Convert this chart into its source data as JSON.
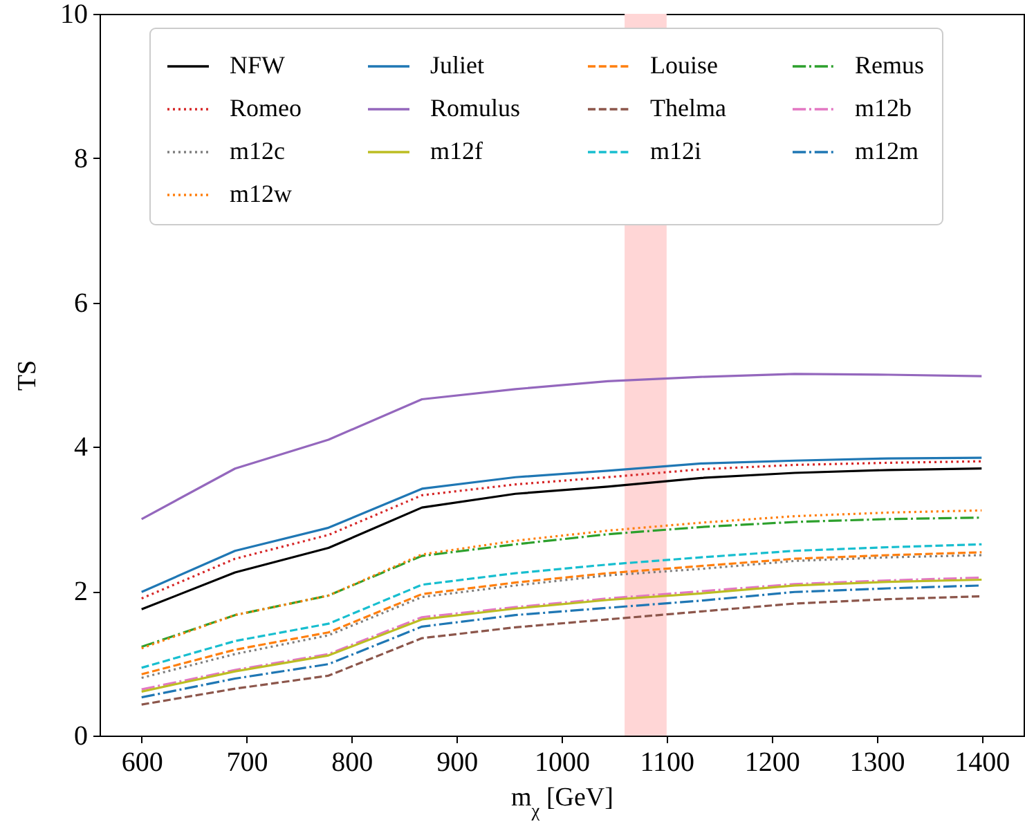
{
  "chart_data": {
    "type": "line",
    "xlabel": "m$_{χ}$ [GeV]",
    "ylabel": "TS",
    "x": [
      600,
      689,
      778,
      867,
      956,
      1044,
      1133,
      1222,
      1311,
      1400
    ],
    "xlim": [
      560,
      1440
    ],
    "ylim": [
      0,
      10
    ],
    "xticks": [
      600,
      700,
      800,
      900,
      1000,
      1100,
      1200,
      1300,
      1400
    ],
    "yticks": [
      0,
      2,
      4,
      6,
      8,
      10
    ],
    "grid": false,
    "legend": "top",
    "marker": "none",
    "bands": [
      {
        "axis": "x",
        "from": 1060,
        "to": 1100,
        "color": "#ffd6d6"
      }
    ],
    "series": [
      {
        "name": "NFW",
        "color": "#000000",
        "line_style": "solid",
        "values": [
          1.75,
          2.26,
          2.6,
          3.16,
          3.35,
          3.45,
          3.57,
          3.64,
          3.68,
          3.7
        ]
      },
      {
        "name": "Juliet",
        "color": "#1f77b4",
        "line_style": "solid",
        "values": [
          1.99,
          2.56,
          2.88,
          3.42,
          3.58,
          3.67,
          3.77,
          3.81,
          3.84,
          3.85
        ]
      },
      {
        "name": "Louise",
        "color": "#ff7f0e",
        "line_style": "dashed",
        "values": [
          0.85,
          1.19,
          1.43,
          1.96,
          2.12,
          2.25,
          2.35,
          2.45,
          2.5,
          2.54
        ]
      },
      {
        "name": "Remus",
        "color": "#2ca02c",
        "line_style": "dashdot",
        "values": [
          1.23,
          1.67,
          1.94,
          2.49,
          2.65,
          2.79,
          2.89,
          2.96,
          3.0,
          3.02
        ]
      },
      {
        "name": "Romeo",
        "color": "#d62728",
        "line_style": "dotted",
        "values": [
          1.9,
          2.45,
          2.78,
          3.33,
          3.48,
          3.58,
          3.69,
          3.75,
          3.78,
          3.8
        ]
      },
      {
        "name": "Romulus",
        "color": "#9467bd",
        "line_style": "solid",
        "values": [
          3.0,
          3.7,
          4.1,
          4.66,
          4.8,
          4.91,
          4.97,
          5.01,
          5.0,
          4.98
        ]
      },
      {
        "name": "Thelma",
        "color": "#8c564b",
        "line_style": "dashed",
        "values": [
          0.43,
          0.65,
          0.83,
          1.35,
          1.5,
          1.61,
          1.72,
          1.83,
          1.89,
          1.93
        ]
      },
      {
        "name": "m12b",
        "color": "#e377c2",
        "line_style": "dashdot",
        "values": [
          0.64,
          0.91,
          1.13,
          1.64,
          1.78,
          1.9,
          2.0,
          2.1,
          2.15,
          2.19
        ]
      },
      {
        "name": "m12c",
        "color": "#7f7f7f",
        "line_style": "dotted",
        "values": [
          0.8,
          1.13,
          1.39,
          1.92,
          2.08,
          2.22,
          2.31,
          2.42,
          2.47,
          2.5
        ]
      },
      {
        "name": "m12f",
        "color": "#bcbd22",
        "line_style": "solid",
        "values": [
          0.61,
          0.89,
          1.11,
          1.61,
          1.76,
          1.88,
          1.97,
          2.08,
          2.13,
          2.16
        ]
      },
      {
        "name": "m12i",
        "color": "#17becf",
        "line_style": "dashed",
        "values": [
          0.94,
          1.31,
          1.55,
          2.09,
          2.25,
          2.37,
          2.47,
          2.56,
          2.61,
          2.65
        ]
      },
      {
        "name": "m12m",
        "color": "#1f77b4",
        "line_style": "dashdot",
        "values": [
          0.53,
          0.79,
          0.99,
          1.51,
          1.67,
          1.77,
          1.87,
          1.99,
          2.04,
          2.08
        ]
      },
      {
        "name": "m12w",
        "color": "#ff7f0e",
        "line_style": "dotted",
        "values": [
          1.21,
          1.67,
          1.94,
          2.51,
          2.7,
          2.84,
          2.95,
          3.04,
          3.09,
          3.12
        ]
      }
    ]
  }
}
